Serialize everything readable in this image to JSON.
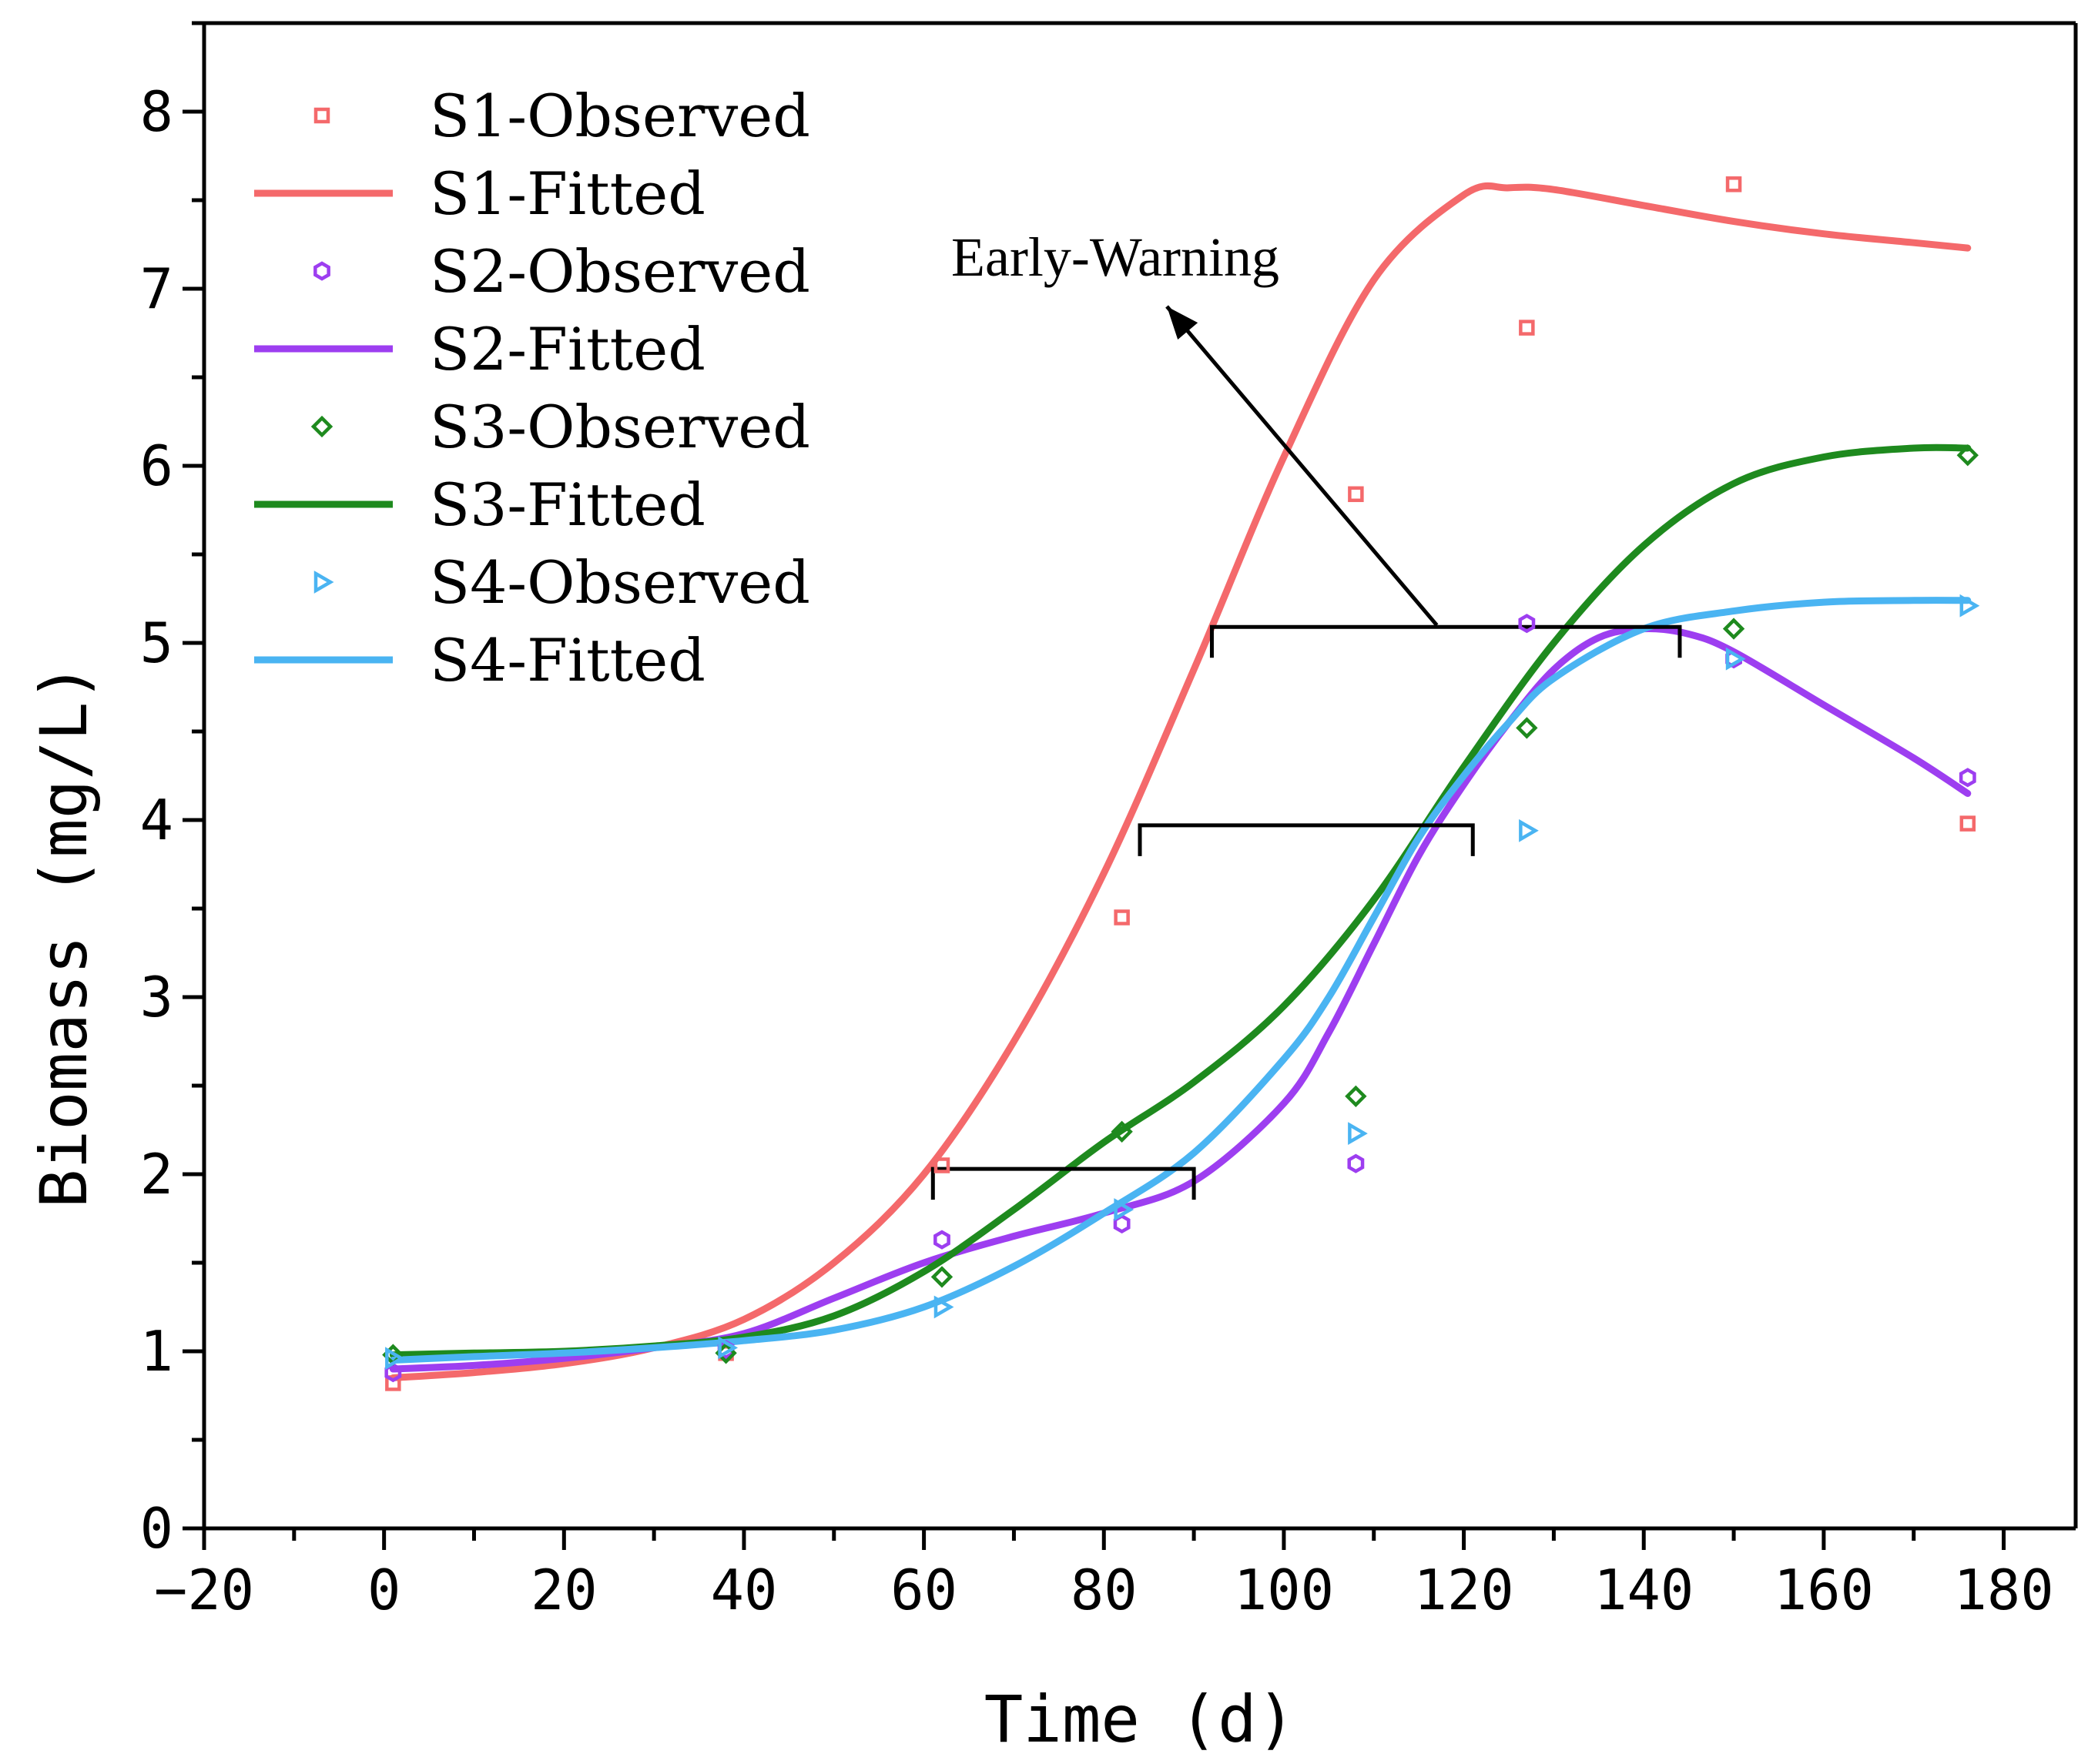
{
  "chart_data": {
    "type": "line",
    "title": "",
    "xlabel": "Time (d)",
    "ylabel": "Biomass (mg/L)",
    "xlim": [
      -20,
      188
    ],
    "ylim": [
      0,
      8.5
    ],
    "xticks": [
      -20,
      0,
      20,
      40,
      60,
      80,
      100,
      120,
      140,
      160,
      180
    ],
    "xtick_labels": [
      "−20",
      "0",
      "20",
      "40",
      "60",
      "80",
      "100",
      "120",
      "140",
      "160",
      "180"
    ],
    "yticks": [
      0,
      1,
      2,
      3,
      4,
      5,
      6,
      7,
      8
    ],
    "ytick_labels": [
      "0",
      "1",
      "2",
      "3",
      "4",
      "5",
      "6",
      "7",
      "8"
    ],
    "legend_position": "top-left",
    "series": [
      {
        "name": "S1",
        "observed_label": "S1-Observed",
        "fitted_label": "S1-Fitted",
        "color": "#f4696b",
        "marker": "square",
        "observed": {
          "x": [
            1,
            38,
            62,
            82,
            108,
            127,
            150,
            176
          ],
          "y": [
            0.82,
            0.99,
            2.05,
            3.45,
            5.84,
            6.78,
            7.59,
            3.98
          ]
        },
        "fitted": {
          "x": [
            1,
            10,
            20,
            30,
            40,
            50,
            60,
            70,
            80,
            90,
            100,
            110,
            120,
            125,
            130,
            140,
            150,
            160,
            170,
            176
          ],
          "y": [
            0.85,
            0.88,
            0.93,
            1.02,
            1.18,
            1.5,
            2.0,
            2.75,
            3.7,
            4.85,
            6.05,
            7.05,
            7.53,
            7.57,
            7.56,
            7.47,
            7.38,
            7.31,
            7.26,
            7.23
          ]
        }
      },
      {
        "name": "S2",
        "observed_label": "S2-Observed",
        "fitted_label": "S2-Fitted",
        "color": "#9d3ef0",
        "marker": "hexagon",
        "observed": {
          "x": [
            1,
            38,
            62,
            82,
            108,
            127,
            150,
            176
          ],
          "y": [
            0.88,
            1.01,
            1.63,
            1.72,
            2.06,
            5.11,
            4.91,
            4.24
          ]
        },
        "fitted": {
          "x": [
            1,
            10,
            20,
            30,
            40,
            50,
            60,
            70,
            80,
            90,
            100,
            105,
            110,
            115,
            120,
            125,
            130,
            135,
            140,
            145,
            150,
            160,
            170,
            176
          ],
          "y": [
            0.9,
            0.92,
            0.96,
            1.02,
            1.1,
            1.3,
            1.5,
            1.65,
            1.78,
            1.96,
            2.4,
            2.8,
            3.3,
            3.8,
            4.2,
            4.55,
            4.85,
            5.03,
            5.08,
            5.05,
            4.95,
            4.65,
            4.35,
            4.15
          ]
        }
      },
      {
        "name": "S3",
        "observed_label": "S3-Observed",
        "fitted_label": "S3-Fitted",
        "color": "#1e8a1e",
        "marker": "diamond",
        "observed": {
          "x": [
            1,
            38,
            62,
            82,
            108,
            127,
            150,
            176
          ],
          "y": [
            0.98,
            0.99,
            1.42,
            2.24,
            2.44,
            4.52,
            5.08,
            6.06
          ]
        },
        "fitted": {
          "x": [
            1,
            10,
            20,
            30,
            40,
            50,
            60,
            70,
            80,
            90,
            100,
            110,
            120,
            130,
            140,
            150,
            160,
            170,
            176
          ],
          "y": [
            0.98,
            0.99,
            1.0,
            1.03,
            1.08,
            1.2,
            1.45,
            1.8,
            2.18,
            2.52,
            2.95,
            3.55,
            4.3,
            5.0,
            5.55,
            5.9,
            6.05,
            6.1,
            6.1
          ]
        }
      },
      {
        "name": "S4",
        "observed_label": "S4-Observed",
        "fitted_label": "S4-Fitted",
        "color": "#4ab4f2",
        "marker": "triangle-right",
        "observed": {
          "x": [
            1,
            38,
            62,
            82,
            108,
            127,
            150,
            176
          ],
          "y": [
            0.96,
            1.02,
            1.25,
            1.8,
            2.23,
            3.94,
            4.91,
            5.21
          ]
        },
        "fitted": {
          "x": [
            1,
            10,
            20,
            30,
            40,
            50,
            60,
            70,
            80,
            90,
            100,
            105,
            110,
            115,
            120,
            125,
            130,
            140,
            150,
            160,
            170,
            176
          ],
          "y": [
            0.95,
            0.97,
            0.99,
            1.02,
            1.06,
            1.12,
            1.25,
            1.48,
            1.78,
            2.12,
            2.65,
            3.0,
            3.45,
            3.9,
            4.25,
            4.55,
            4.8,
            5.08,
            5.18,
            5.23,
            5.24,
            5.24
          ]
        }
      }
    ],
    "brackets": [
      {
        "x_start": 61,
        "x_end": 90,
        "y": 2.03
      },
      {
        "x_start": 84,
        "x_end": 121,
        "y": 3.97
      },
      {
        "x_start": 92,
        "x_end": 144,
        "y": 5.09
      }
    ],
    "annotations": [
      {
        "text": "Early-Warning",
        "arrow_from": [
          117,
          5.1
        ],
        "arrow_to": [
          87,
          6.9
        ]
      }
    ]
  }
}
